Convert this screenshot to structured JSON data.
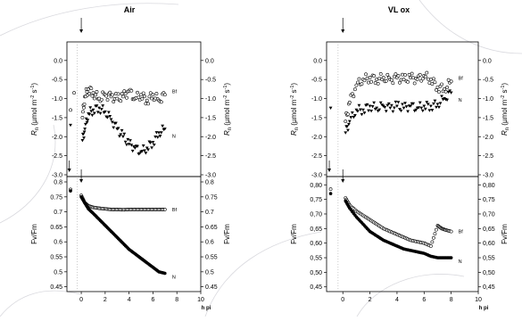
{
  "chart_data": [
    {
      "type": "scatter",
      "title": "Air",
      "xlabel": "h pi",
      "x_ticks": [
        "0",
        "2",
        "4",
        "6",
        "8",
        "10"
      ],
      "xlim": [
        -1.2,
        10
      ],
      "top": {
        "ylabel_left": "Rn (µmol m-2 s-1)",
        "ylabel_right": "Rn (µmol m-2 s-1)",
        "ylim": [
          -3.0,
          0.3
        ],
        "y_ticks": [
          "0.0",
          "-0.5",
          "-1.0",
          "-1.5",
          "-2.0",
          "-2.5",
          "-3.0"
        ],
        "series": [
          {
            "name": "Bf",
            "marker": "open-circle",
            "x": [
              -0.9,
              -0.6,
              0.1,
              0.3,
              0.6,
              1.0,
              1.5,
              2.0,
              2.5,
              3.0,
              3.5,
              4.0,
              4.5,
              5.0,
              5.5,
              6.0,
              6.5,
              7.0
            ],
            "y": [
              -1.3,
              -0.85,
              -1.5,
              -0.95,
              -0.75,
              -0.85,
              -1.0,
              -0.9,
              -0.95,
              -1.0,
              -0.95,
              -0.8,
              -1.0,
              -0.9,
              -1.05,
              -0.9,
              -1.05,
              -0.9
            ]
          },
          {
            "name": "N",
            "marker": "filled-triangle",
            "x": [
              -0.9,
              0.1,
              0.3,
              0.6,
              1.0,
              1.5,
              2.0,
              2.5,
              3.0,
              3.5,
              4.0,
              4.5,
              5.0,
              5.5,
              6.0,
              6.5,
              7.0
            ],
            "y": [
              -1.7,
              -2.1,
              -1.8,
              -1.4,
              -1.3,
              -1.25,
              -1.35,
              -1.55,
              -1.8,
              -2.0,
              -2.2,
              -2.3,
              -2.4,
              -2.3,
              -2.15,
              -1.9,
              -1.8
            ]
          }
        ]
      },
      "bottom": {
        "ylabel_left": "Fv/Fm",
        "ylabel_right": "Fv/Fm",
        "ylim": [
          0.44,
          0.8
        ],
        "y_ticks": [
          "0.8",
          "0.75",
          "0.7",
          "0.65",
          "0.6",
          "0.55",
          "0.5",
          "0.45"
        ],
        "series": [
          {
            "name": "Bf",
            "marker": "open-circle",
            "x": [
              -0.9,
              0.0,
              0.3,
              0.6,
              1.0,
              1.5,
              2.0,
              2.5,
              3.0,
              3.5,
              4.0,
              4.5,
              5.0,
              5.5,
              6.0,
              6.5,
              7.0
            ],
            "y": [
              0.775,
              0.755,
              0.73,
              0.72,
              0.715,
              0.712,
              0.71,
              0.708,
              0.708,
              0.707,
              0.708,
              0.708,
              0.708,
              0.708,
              0.708,
              0.708,
              0.708
            ]
          },
          {
            "name": "N",
            "marker": "filled-circle",
            "x": [
              -0.9,
              0.0,
              0.3,
              0.6,
              1.0,
              1.5,
              2.0,
              2.5,
              3.0,
              3.5,
              4.0,
              4.5,
              5.0,
              5.5,
              6.0,
              6.5,
              7.0
            ],
            "y": [
              0.77,
              0.75,
              0.73,
              0.71,
              0.695,
              0.675,
              0.655,
              0.635,
              0.615,
              0.595,
              0.575,
              0.56,
              0.545,
              0.53,
              0.515,
              0.5,
              0.495
            ]
          }
        ]
      }
    },
    {
      "type": "scatter",
      "title": "VL ox",
      "xlabel": "h pi",
      "x_ticks": [
        "0",
        "2",
        "4",
        "6",
        "8",
        "10"
      ],
      "xlim": [
        -1.2,
        10
      ],
      "top": {
        "ylabel_left": "Rn (µmol m-2 s-1)",
        "ylabel_right": "Rn (µmol m-2 s-1)",
        "ylim": [
          -3.0,
          0.3
        ],
        "y_ticks": [
          "0.0",
          "-0.5",
          "-1.0",
          "-1.5",
          "-2.0",
          "-2.5",
          "-3.0"
        ],
        "series": [
          {
            "name": "Bf",
            "marker": "open-circle",
            "x": [
              0.2,
              0.5,
              1.0,
              1.5,
              2.0,
              2.5,
              3.0,
              3.5,
              4.0,
              4.5,
              5.0,
              5.5,
              6.0,
              6.5,
              7.0,
              7.5,
              8.0
            ],
            "y": [
              -1.6,
              -1.1,
              -0.65,
              -0.5,
              -0.45,
              -0.5,
              -0.45,
              -0.5,
              -0.45,
              -0.5,
              -0.45,
              -0.5,
              -0.4,
              -0.5,
              -0.7,
              -0.75,
              -0.55
            ]
          },
          {
            "name": "N",
            "marker": "filled-triangle",
            "x": [
              -0.9,
              0.2,
              0.5,
              1.0,
              1.5,
              2.0,
              2.5,
              3.0,
              3.5,
              4.0,
              4.5,
              5.0,
              5.5,
              6.0,
              6.5,
              7.0,
              7.5,
              8.0
            ],
            "y": [
              -1.25,
              -1.9,
              -1.6,
              -1.3,
              -1.3,
              -1.2,
              -1.25,
              -1.2,
              -1.25,
              -1.2,
              -1.25,
              -1.2,
              -1.25,
              -1.2,
              -1.2,
              -1.15,
              -1.0,
              -0.85
            ]
          }
        ]
      },
      "bottom": {
        "ylabel_left": "Fv/Fm",
        "ylabel_right": "Fv/Fm",
        "ylim": [
          0.44,
          0.81
        ],
        "y_ticks": [
          "0,80",
          "0,75",
          "0,70",
          "0,65",
          "0,60",
          "0,55",
          "0,50",
          "0,45"
        ],
        "series": [
          {
            "name": "Bf",
            "marker": "open-circle",
            "x": [
              -0.9,
              0.2,
              0.5,
              1.0,
              1.5,
              2.0,
              2.5,
              3.0,
              3.5,
              4.0,
              4.5,
              5.0,
              5.5,
              6.0,
              6.5,
              7.0,
              7.3,
              7.6,
              8.0
            ],
            "y": [
              0.785,
              0.755,
              0.73,
              0.71,
              0.695,
              0.68,
              0.665,
              0.65,
              0.64,
              0.63,
              0.62,
              0.61,
              0.605,
              0.6,
              0.59,
              0.66,
              0.65,
              0.645,
              0.64
            ]
          },
          {
            "name": "N",
            "marker": "filled-circle",
            "x": [
              -0.9,
              0.2,
              0.5,
              1.0,
              1.5,
              2.0,
              2.5,
              3.0,
              3.5,
              4.0,
              4.5,
              5.0,
              5.5,
              6.0,
              6.5,
              7.0,
              7.5,
              8.0
            ],
            "y": [
              0.77,
              0.745,
              0.72,
              0.69,
              0.665,
              0.64,
              0.625,
              0.61,
              0.6,
              0.59,
              0.58,
              0.575,
              0.57,
              0.565,
              0.555,
              0.55,
              0.55,
              0.55
            ]
          }
        ]
      }
    }
  ]
}
